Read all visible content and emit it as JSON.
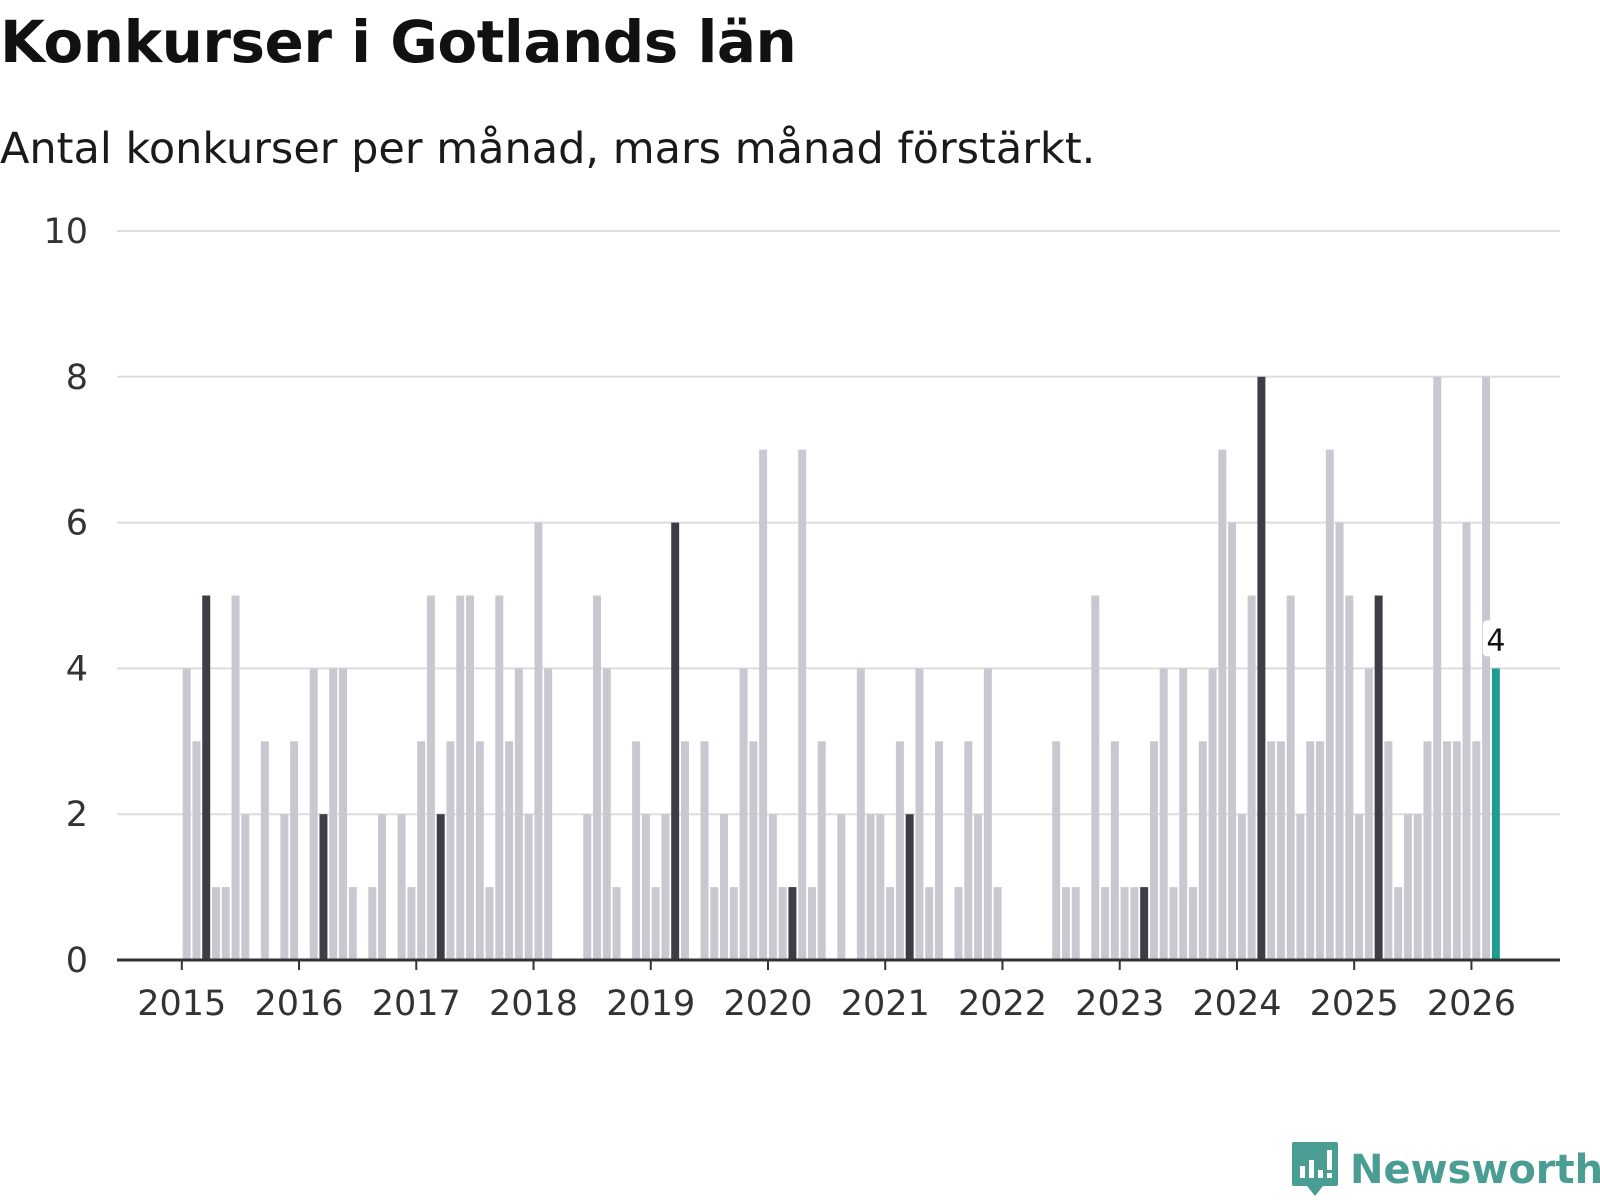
{
  "chart_data": {
    "type": "bar",
    "title": "Konkurser i Gotlands län",
    "subtitle": "Antal konkurser per månad, mars månad förstärkt.",
    "xlabel": "",
    "ylabel": "",
    "ylim": [
      0,
      10
    ],
    "yticks": [
      0,
      2,
      4,
      6,
      8,
      10
    ],
    "grid": true,
    "start": {
      "year": 2015,
      "month": 1
    },
    "highlight_month": 3,
    "year_labels": [
      "2015",
      "2016",
      "2017",
      "2018",
      "2019",
      "2020",
      "2021",
      "2022",
      "2023",
      "2024",
      "2025",
      "2026"
    ],
    "values": [
      4,
      3,
      5,
      1,
      1,
      5,
      2,
      0,
      3,
      0,
      2,
      3,
      0,
      4,
      2,
      4,
      4,
      1,
      0,
      1,
      2,
      0,
      2,
      1,
      3,
      5,
      2,
      3,
      5,
      5,
      3,
      1,
      5,
      3,
      4,
      2,
      6,
      4,
      0,
      0,
      0,
      2,
      5,
      4,
      1,
      0,
      3,
      2,
      1,
      2,
      6,
      3,
      0,
      3,
      1,
      2,
      1,
      4,
      3,
      7,
      2,
      1,
      1,
      7,
      1,
      3,
      0,
      2,
      0,
      4,
      2,
      2,
      1,
      3,
      2,
      4,
      1,
      3,
      0,
      1,
      3,
      2,
      4,
      1,
      0,
      0,
      0,
      0,
      0,
      3,
      1,
      1,
      0,
      5,
      1,
      3,
      1,
      1,
      1,
      3,
      4,
      1,
      4,
      1,
      3,
      4,
      7,
      6,
      2,
      5,
      8,
      3,
      3,
      5,
      2,
      3,
      3,
      7,
      6,
      5,
      2,
      4,
      5,
      3,
      1,
      2,
      2,
      3,
      8,
      3,
      3,
      6,
      3,
      8,
      4
    ],
    "last_value_label": "4",
    "colors": {
      "normal": "#c8c8d0",
      "highlight": "#3d3d48",
      "latest": "#1d9c8f",
      "grid": "#dddddd",
      "axis": "#333333"
    }
  },
  "brand": {
    "name": "Newsworthy",
    "logo_icon": "bar-chart-speech-bubble-icon",
    "color": "#4a9d92"
  }
}
